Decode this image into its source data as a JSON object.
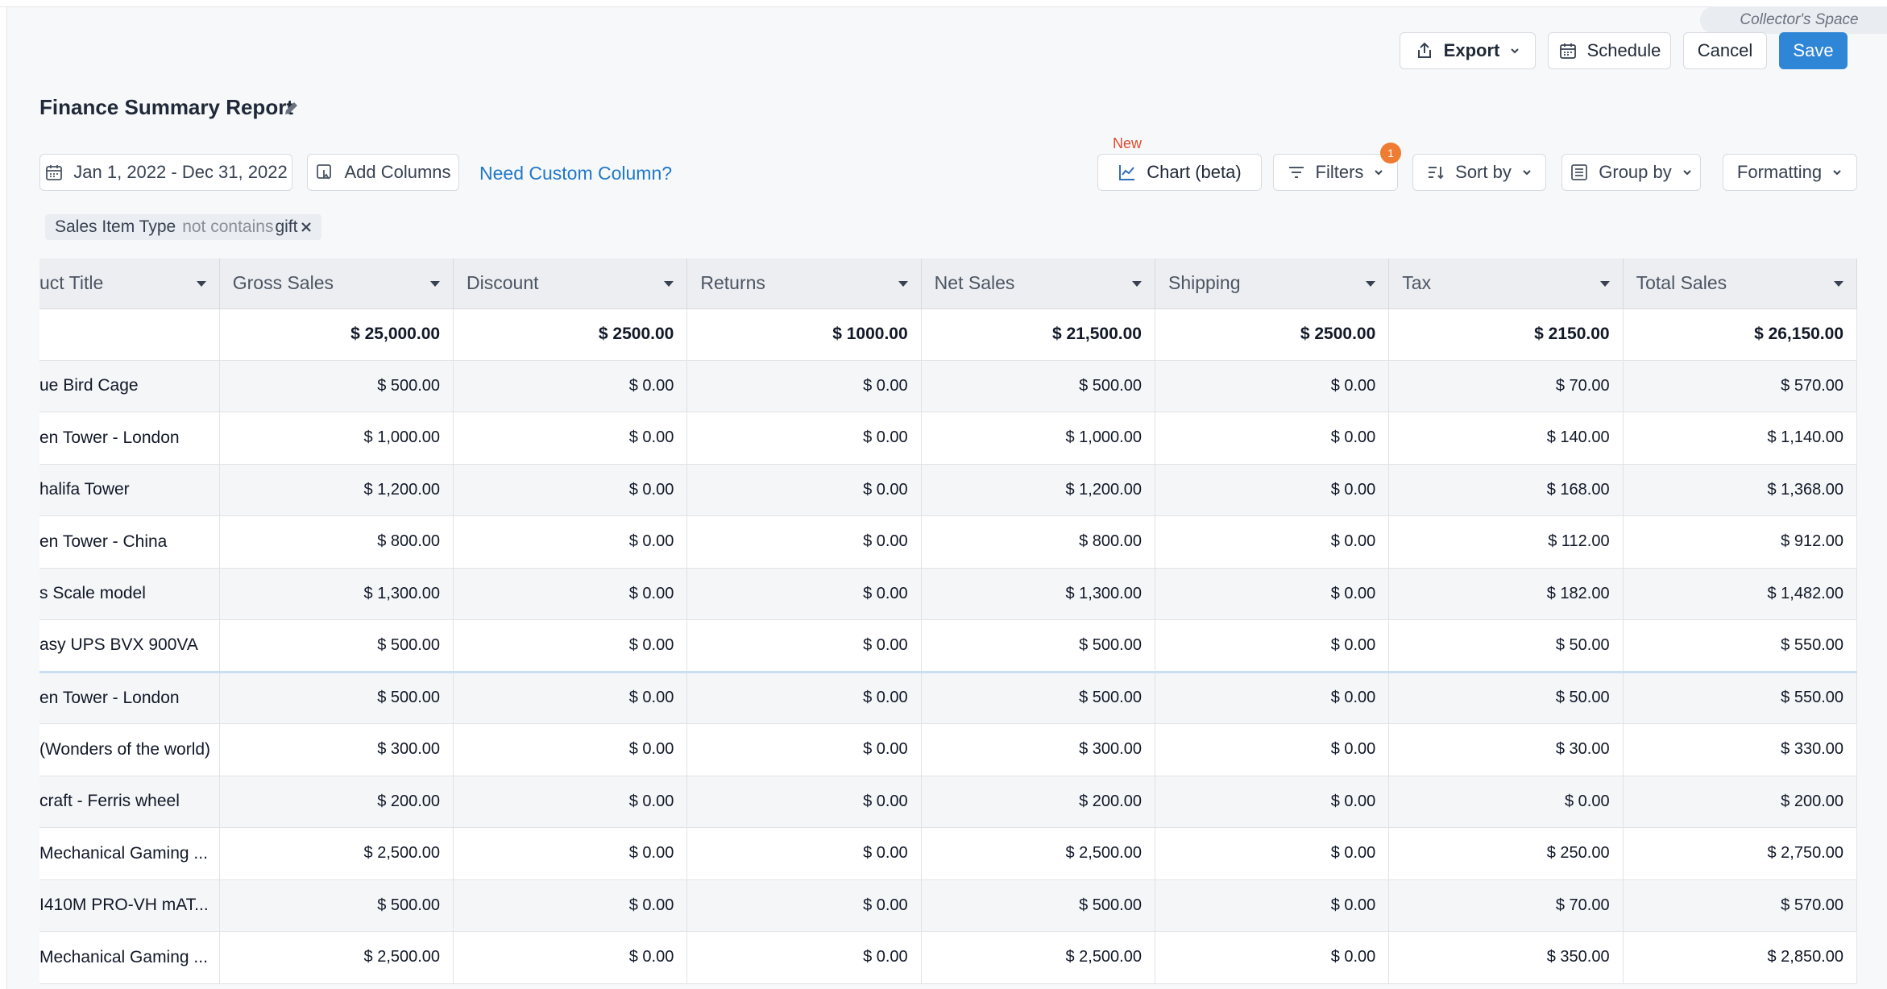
{
  "workspace_label": "Collector's Space",
  "header": {
    "export_label": "Export",
    "schedule_label": "Schedule",
    "cancel_label": "Cancel",
    "save_label": "Save"
  },
  "report": {
    "title": "Finance Summary Report"
  },
  "toolbar": {
    "date_range": "Jan 1, 2022 - Dec 31, 2022",
    "add_columns_label": "Add Columns",
    "custom_column_link": "Need Custom Column?",
    "new_label": "New",
    "chart_label": "Chart (beta)",
    "filters_label": "Filters",
    "filters_count": "1",
    "sort_label": "Sort by",
    "group_label": "Group by",
    "formatting_label": "Formatting"
  },
  "filter_chip": {
    "field": "Sales Item Type",
    "operator": "not contains",
    "value": "gift"
  },
  "table": {
    "columns": [
      "uct Title",
      "Gross Sales",
      "Discount",
      "Returns",
      "Net Sales",
      "Shipping",
      "Tax",
      "Total Sales"
    ],
    "totals": [
      "",
      "$ 25,000.00",
      "$ 2500.00",
      "$ 1000.00",
      "$ 21,500.00",
      "$ 2500.00",
      "$ 2150.00",
      "$ 26,150.00"
    ],
    "rows": [
      [
        "ue Bird Cage",
        "$ 500.00",
        "$ 0.00",
        "$ 0.00",
        "$ 500.00",
        "$ 0.00",
        "$ 70.00",
        "$ 570.00"
      ],
      [
        "en Tower - London",
        "$ 1,000.00",
        "$ 0.00",
        "$ 0.00",
        "$ 1,000.00",
        "$ 0.00",
        "$ 140.00",
        "$ 1,140.00"
      ],
      [
        "halifa Tower",
        "$ 1,200.00",
        "$ 0.00",
        "$ 0.00",
        "$ 1,200.00",
        "$ 0.00",
        "$ 168.00",
        "$ 1,368.00"
      ],
      [
        "en Tower - China",
        "$ 800.00",
        "$ 0.00",
        "$ 0.00",
        "$ 800.00",
        "$ 0.00",
        "$ 112.00",
        "$ 912.00"
      ],
      [
        "s Scale model",
        "$ 1,300.00",
        "$ 0.00",
        "$ 0.00",
        "$ 1,300.00",
        "$ 0.00",
        "$ 182.00",
        "$ 1,482.00"
      ],
      [
        "asy UPS BVX 900VA",
        "$ 500.00",
        "$ 0.00",
        "$ 0.00",
        "$ 500.00",
        "$ 0.00",
        "$ 50.00",
        "$ 550.00"
      ],
      [
        "en Tower - London",
        "$ 500.00",
        "$ 0.00",
        "$ 0.00",
        "$ 500.00",
        "$ 0.00",
        "$ 50.00",
        "$ 550.00"
      ],
      [
        "(Wonders of the world)",
        "$ 300.00",
        "$ 0.00",
        "$ 0.00",
        "$ 300.00",
        "$ 0.00",
        "$ 30.00",
        "$ 330.00"
      ],
      [
        "craft - Ferris wheel",
        "$ 200.00",
        "$ 0.00",
        "$ 0.00",
        "$ 200.00",
        "$ 0.00",
        "$ 0.00",
        "$ 200.00"
      ],
      [
        "Mechanical Gaming ...",
        "$ 2,500.00",
        "$ 0.00",
        "$ 0.00",
        "$ 2,500.00",
        "$ 0.00",
        "$ 250.00",
        "$ 2,750.00"
      ],
      [
        "I410M PRO-VH mAT...",
        "$ 500.00",
        "$ 0.00",
        "$ 0.00",
        "$ 500.00",
        "$ 0.00",
        "$ 70.00",
        "$ 570.00"
      ],
      [
        "Mechanical Gaming ...",
        "$ 2,500.00",
        "$ 0.00",
        "$ 0.00",
        "$ 2,500.00",
        "$ 0.00",
        "$ 350.00",
        "$ 2,850.00"
      ]
    ]
  }
}
